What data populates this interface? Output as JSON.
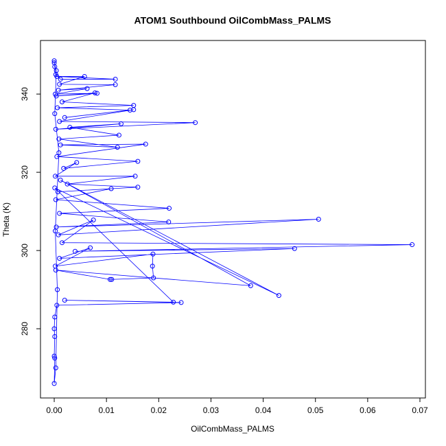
{
  "chart_data": {
    "type": "line",
    "markers": true,
    "title": "ATOM1 Southbound OilCombMass_PALMS",
    "x_label": "OilCombMass_PALMS",
    "y_label": "Theta (K)",
    "color": "#0000ff",
    "xlim": [
      -0.00263,
      0.07105
    ],
    "ylim": [
      262.3,
      353.7
    ],
    "xticks": [
      {
        "value": 0,
        "label": "0.00"
      },
      {
        "value": 0.01,
        "label": "0.01"
      },
      {
        "value": 0.02,
        "label": "0.02"
      },
      {
        "value": 0.03,
        "label": "0.03"
      },
      {
        "value": 0.04,
        "label": "0.04"
      },
      {
        "value": 0.05,
        "label": "0.05"
      },
      {
        "value": 0.06,
        "label": "0.06"
      },
      {
        "value": 0.07,
        "label": "0.07"
      }
    ],
    "yticks": [
      280,
      300,
      320,
      340
    ],
    "x": [
      0.0,
      0.0001,
      0.0003,
      0.0012,
      0.0117,
      0.0005,
      0.0058,
      0.001,
      0.0117,
      0.0008,
      0.0063,
      0.0002,
      0.0082,
      0.0004,
      0.0078,
      0.0015,
      0.0152,
      0.0006,
      0.0145,
      0.002,
      0.0152,
      0.001,
      0.027,
      0.0003,
      0.0128,
      0.003,
      0.0124,
      0.0009,
      0.0121,
      0.0012,
      0.0175,
      0.0005,
      0.016,
      0.0018,
      0.0043,
      0.0002,
      0.0155,
      0.0025,
      0.016,
      0.0007,
      0.0109,
      0.0003,
      0.022,
      0.001,
      0.0219,
      0.0004,
      0.0506,
      0.0008,
      0.0075,
      0.0015,
      0.0685,
      0.004,
      0.046,
      0.001,
      0.0069,
      0.0002,
      0.0189,
      0.0188,
      0.019,
      0.011,
      0.0107,
      0.0003,
      0.0376,
      0.0012,
      0.043,
      0.0001,
      0.0228,
      0.002,
      0.0243,
      0.0005,
      0.0001,
      0.0,
      0.0001,
      0.0,
      0.0001,
      0.0,
      0.0003,
      0.0006,
      0.0002,
      0.0009,
      0.0001,
      0.0004,
      0.0
    ],
    "values": [
      348.5,
      347,
      345,
      343.8,
      343.8,
      344.5,
      344.5,
      342.5,
      342.4,
      341,
      341.4,
      340,
      340.2,
      339.5,
      340.3,
      338,
      337.1,
      336.5,
      335.9,
      334,
      336,
      333,
      332.7,
      331,
      332.4,
      331.5,
      329.5,
      328.5,
      326.4,
      327,
      327.2,
      324,
      322.8,
      321,
      322.5,
      319,
      319,
      317,
      316.2,
      315,
      315.8,
      313,
      310.8,
      309.5,
      307.3,
      306,
      308,
      304,
      307.8,
      302,
      301.5,
      299.8,
      300.5,
      298,
      300.7,
      296,
      299.1,
      296,
      293,
      292.6,
      292.6,
      295,
      291,
      318,
      288.5,
      316,
      286.8,
      287.3,
      286.7,
      286,
      283,
      280,
      278,
      273,
      272.5,
      266,
      270,
      290,
      305,
      325,
      335,
      346,
      348
    ]
  }
}
